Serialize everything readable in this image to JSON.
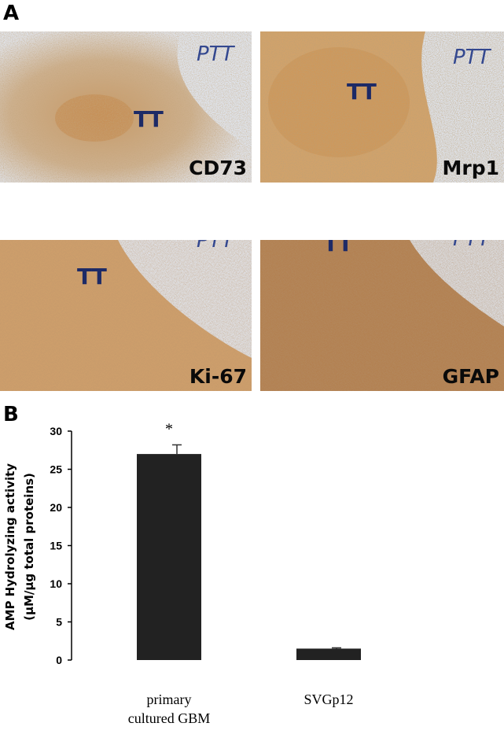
{
  "figure": {
    "panel_a_label": "A",
    "panel_b_label": "B",
    "micrographs": [
      {
        "marker": "CD73",
        "tumor_label": "TT",
        "peritumor_label": "PTT"
      },
      {
        "marker": "Mrp1",
        "tumor_label": "TT",
        "peritumor_label": "PTT"
      },
      {
        "marker": "Ki-67",
        "tumor_label": "TT",
        "peritumor_label": "PTT"
      },
      {
        "marker": "GFAP",
        "tumor_label": "TT",
        "peritumor_label": "PTT"
      }
    ]
  },
  "chart_data": {
    "type": "bar",
    "categories": [
      [
        "primary",
        "cultured GBM"
      ],
      [
        "SVGp12"
      ]
    ],
    "values": [
      27.0,
      1.5
    ],
    "error": [
      1.2,
      0.1
    ],
    "significance": [
      "*",
      ""
    ],
    "ylabel_lines": [
      "AMP Hydrolyzing activity",
      "(µM/µg total proteins)"
    ],
    "yticks": [
      "0",
      "5",
      "10",
      "15",
      "20",
      "25",
      "30"
    ],
    "ylim": [
      0,
      30
    ],
    "grid": false,
    "bar_color": "#222222"
  }
}
